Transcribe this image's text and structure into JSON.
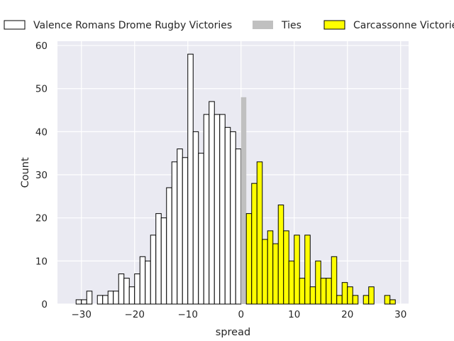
{
  "chart_data": {
    "type": "bar",
    "xlabel": "spread",
    "ylabel": "Count",
    "xlim": [
      -34.5,
      31.5
    ],
    "ylim": [
      0,
      61
    ],
    "xticks": [
      -30,
      -20,
      -10,
      0,
      10,
      20,
      30
    ],
    "yticks": [
      0,
      10,
      20,
      30,
      40,
      50,
      60
    ],
    "grid": true,
    "legend_position": "top",
    "bin_width": 1,
    "colors": {
      "background": "#eaeaf2",
      "valence": "#ffffff",
      "ties": "#c0c0c0",
      "carcassonne": "#ffff00",
      "edge": "#000000"
    },
    "series": [
      {
        "name": "Valence Romans Drome Rugby Victories",
        "x": [
          -31,
          -30,
          -29,
          -27,
          -26,
          -25,
          -24,
          -23,
          -22,
          -21,
          -20,
          -19,
          -18,
          -17,
          -16,
          -15,
          -14,
          -13,
          -12,
          -11,
          -10,
          -9,
          -8,
          -7,
          -6,
          -5,
          -4,
          -3,
          -2,
          -1
        ],
        "values": [
          1,
          1,
          3,
          2,
          2,
          3,
          3,
          7,
          6,
          4,
          7,
          11,
          10,
          16,
          21,
          20,
          27,
          33,
          36,
          34,
          58,
          40,
          35,
          44,
          47,
          44,
          44,
          41,
          40,
          36
        ]
      },
      {
        "name": "Ties",
        "x": [
          0
        ],
        "values": [
          48
        ]
      },
      {
        "name": "Carcassonne Victories",
        "x": [
          1,
          2,
          3,
          4,
          5,
          6,
          7,
          8,
          9,
          10,
          11,
          12,
          13,
          14,
          15,
          16,
          17,
          18,
          19,
          20,
          21,
          23,
          24,
          27,
          28
        ],
        "values": [
          21,
          28,
          33,
          15,
          17,
          14,
          23,
          17,
          10,
          16,
          6,
          16,
          4,
          10,
          6,
          6,
          11,
          2,
          5,
          4,
          2,
          2,
          4,
          2,
          1
        ]
      }
    ]
  }
}
